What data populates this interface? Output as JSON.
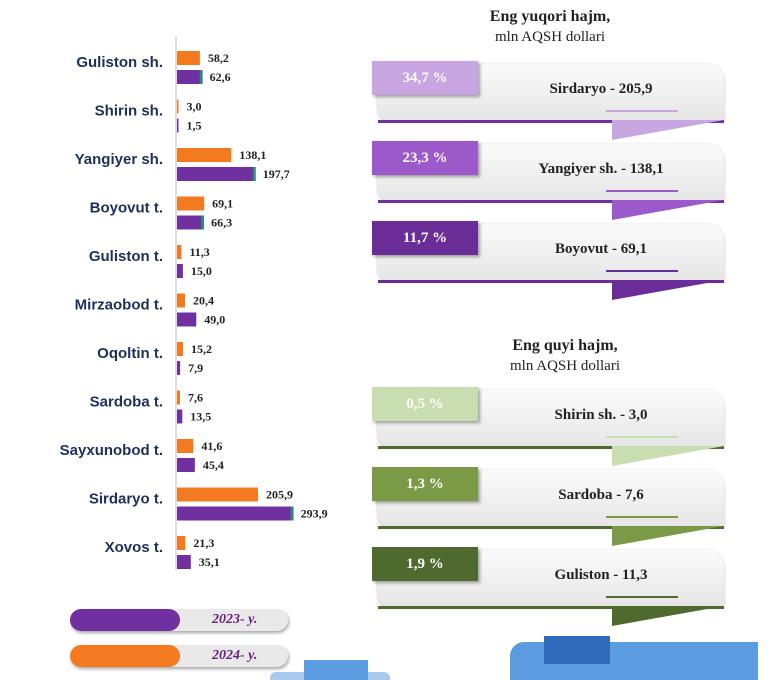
{
  "chart_data": {
    "type": "bar",
    "orientation": "horizontal",
    "categories": [
      "Guliston sh.",
      "Shirin sh.",
      "Yangiyer sh.",
      "Boyovut t.",
      "Guliston t.",
      "Mirzaobod t.",
      "Oqoltin t.",
      "Sardoba t.",
      "Sayxunobod t.",
      "Sirdaryo t.",
      "Xovos t."
    ],
    "series": [
      {
        "name": "2024- y.",
        "color": "#f47a20",
        "values": [
          58.2,
          3.0,
          138.1,
          69.1,
          11.3,
          20.4,
          15.2,
          7.6,
          41.6,
          205.9,
          21.3
        ],
        "labels": [
          "58,2",
          "3,0",
          "138,1",
          "69,1",
          "11,3",
          "20,4",
          "15,2",
          "7,6",
          "41,6",
          "205,9",
          "21,3"
        ]
      },
      {
        "name": "2023- y.",
        "color": "#7030a0",
        "values": [
          62.6,
          1.5,
          197.7,
          66.3,
          15.0,
          49.0,
          7.9,
          13.5,
          45.4,
          293.9,
          35.1
        ],
        "labels": [
          "62,6",
          "1,5",
          "197,7",
          "66,3",
          "15,0",
          "49,0",
          "7,9",
          "13,5",
          "45,4",
          "293,9",
          "35,1"
        ]
      }
    ],
    "title": "",
    "xlabel": "",
    "ylabel": "",
    "xlim": [
      0,
      300
    ],
    "grid": false,
    "legend": "bottom-left"
  },
  "legend": {
    "y2023": "2023- y.",
    "y2024": "2024- y."
  },
  "top_panel": {
    "title": "Eng yuqori hajm,",
    "subtitle": "mln AQSH dollari",
    "items": [
      {
        "pct": "34,7 %",
        "name": "Sirdaryo - 205,9",
        "badge_color": "#c7a6e2",
        "accent": "#7030a0"
      },
      {
        "pct": "23,3 %",
        "name": "Yangiyer sh. - 138,1",
        "badge_color": "#9b59c9",
        "accent": "#7030a0"
      },
      {
        "pct": "11,7 %",
        "name": "Boyovut  - 69,1",
        "badge_color": "#6a2c97",
        "accent": "#6a2c97"
      }
    ]
  },
  "bottom_panel": {
    "title": "Eng quyi hajm,",
    "subtitle": "mln AQSH dollari",
    "items": [
      {
        "pct": "0,5 %",
        "name": "Shirin sh. -  3,0",
        "badge_color": "#c9deb0",
        "accent": "#4f6a2e"
      },
      {
        "pct": "1,3 %",
        "name": "Sardoba - 7,6",
        "badge_color": "#7a9a45",
        "accent": "#4f6a2e"
      },
      {
        "pct": "1,9 %",
        "name": "Guliston - 11,3",
        "badge_color": "#4f6a2e",
        "accent": "#4f6a2e"
      }
    ]
  },
  "colors": {
    "category_text": "#1f2f5a",
    "orange": "#f47a20",
    "purple": "#7030a0",
    "decor_blue": "#4f8fd8"
  }
}
